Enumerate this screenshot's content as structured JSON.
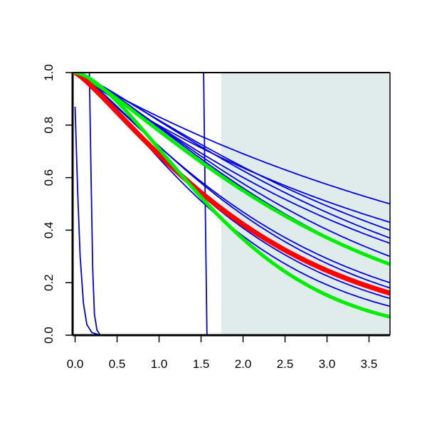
{
  "chart_data": {
    "type": "line",
    "xlim": [
      -0.03,
      3.75
    ],
    "ylim": [
      0.0,
      1.0
    ],
    "x_ticks": [
      "0.0",
      "0.5",
      "1.0",
      "1.5",
      "2.0",
      "2.5",
      "3.0",
      "3.5"
    ],
    "x_tick_values": [
      0.0,
      0.5,
      1.0,
      1.5,
      2.0,
      2.5,
      3.0,
      3.5
    ],
    "y_ticks": [
      "0.0",
      "0.2",
      "0.4",
      "0.6",
      "0.8",
      "1.0"
    ],
    "y_tick_values": [
      0.0,
      0.2,
      0.4,
      0.6,
      0.8,
      1.0
    ],
    "shaded_region": {
      "x_from": 1.74,
      "x_to": 3.75,
      "color": "#e0ecec"
    },
    "colors": {
      "blue": "#0000dd",
      "red": "#ff0000",
      "green": "#00ee00",
      "axis": "#000000"
    },
    "series": [
      {
        "color": "blue",
        "width": 1.8,
        "kind": "polyline",
        "points": [
          [
            0.0,
            0.87
          ],
          [
            0.03,
            0.55
          ],
          [
            0.06,
            0.3
          ],
          [
            0.1,
            0.12
          ],
          [
            0.14,
            0.04
          ],
          [
            0.2,
            0.01
          ],
          [
            0.3,
            0.0
          ],
          [
            3.75,
            0.0
          ]
        ]
      },
      {
        "color": "blue",
        "width": 1.8,
        "kind": "polyline",
        "points": [
          [
            0.0,
            1.0
          ],
          [
            0.17,
            1.0
          ],
          [
            0.19,
            0.6
          ],
          [
            0.21,
            0.25
          ],
          [
            0.23,
            0.08
          ],
          [
            0.26,
            0.02
          ],
          [
            0.3,
            0.0
          ],
          [
            3.75,
            0.0
          ]
        ]
      },
      {
        "color": "blue",
        "width": 1.8,
        "kind": "polyline",
        "points": [
          [
            0.0,
            1.0
          ],
          [
            1.53,
            1.0
          ],
          [
            1.55,
            0.5
          ],
          [
            1.57,
            0.0
          ],
          [
            3.75,
            0.0
          ]
        ]
      },
      {
        "color": "blue",
        "width": 1.8,
        "kind": "curve",
        "p": 1.0,
        "end": 0.5
      },
      {
        "color": "blue",
        "width": 1.8,
        "kind": "curve",
        "p": 1.0,
        "end": 0.43
      },
      {
        "color": "blue",
        "width": 1.8,
        "kind": "curve",
        "p": 1.15,
        "end": 0.4
      },
      {
        "color": "blue",
        "width": 1.8,
        "kind": "curve",
        "p": 1.2,
        "end": 0.37
      },
      {
        "color": "blue",
        "width": 1.8,
        "kind": "curve",
        "p": 1.15,
        "end": 0.35
      },
      {
        "color": "blue",
        "width": 1.8,
        "kind": "curve",
        "p": 1.25,
        "end": 0.3
      },
      {
        "color": "blue",
        "width": 1.8,
        "kind": "curve",
        "p": 1.3,
        "end": 0.27
      },
      {
        "color": "blue",
        "width": 1.8,
        "kind": "curve",
        "p": 1.2,
        "end": 0.2
      },
      {
        "color": "blue",
        "width": 1.8,
        "kind": "curve",
        "p": 1.25,
        "end": 0.18
      },
      {
        "color": "blue",
        "width": 1.8,
        "kind": "curve",
        "p": 1.25,
        "end": 0.14
      },
      {
        "color": "blue",
        "width": 1.8,
        "kind": "curve",
        "p": 1.3,
        "end": 0.11
      },
      {
        "color": "green",
        "width": 5,
        "kind": "curve",
        "p": 1.25,
        "end": 0.27
      },
      {
        "color": "red",
        "width": 7,
        "kind": "curve",
        "p": 1.2,
        "end": 0.16
      },
      {
        "color": "green",
        "width": 5,
        "kind": "curve",
        "p": 1.55,
        "end": 0.07
      }
    ]
  }
}
